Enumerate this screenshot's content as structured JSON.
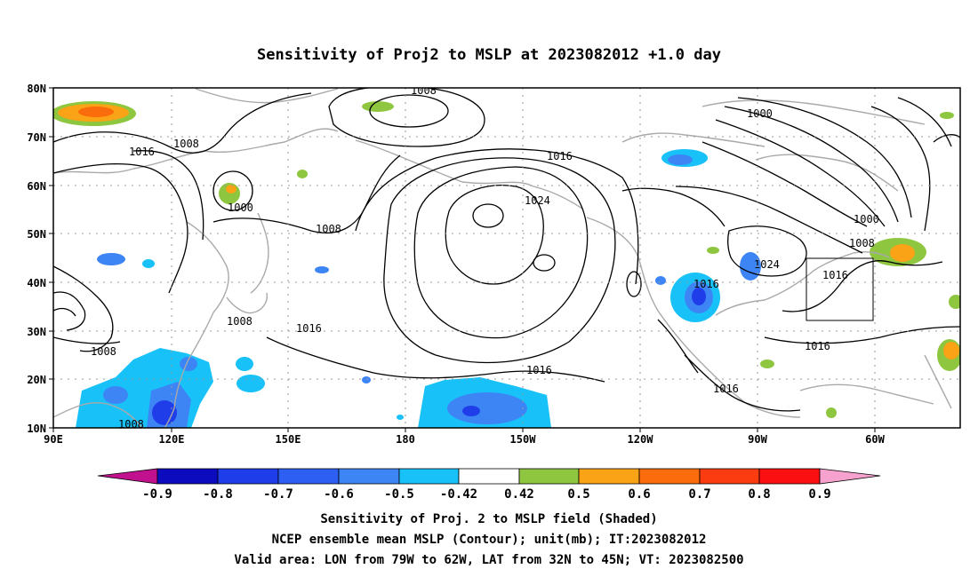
{
  "title": "Sensitivity of Proj2 to MSLP at 2023082012 +1.0 day",
  "axes": {
    "x_ticks": [
      "90E",
      "120E",
      "150E",
      "180",
      "150W",
      "120W",
      "90W",
      "60W"
    ],
    "y_ticks": [
      "80N",
      "70N",
      "60N",
      "50N",
      "40N",
      "30N",
      "20N",
      "10N"
    ]
  },
  "contour_labels": [
    "1008",
    "1000",
    "1016",
    "1008",
    "1000",
    "1008",
    "1016",
    "1024",
    "1016",
    "1008",
    "1016",
    "1008",
    "1024",
    "1016",
    "1000",
    "1008",
    "1016",
    "1016",
    "1016",
    "1008"
  ],
  "colorbar": {
    "labels": [
      "-0.9",
      "-0.8",
      "-0.7",
      "-0.6",
      "-0.5",
      "-0.42",
      "0.42",
      "0.5",
      "0.6",
      "0.7",
      "0.8",
      "0.9"
    ],
    "colors": [
      "#c2118f",
      "#0c0bbd",
      "#1f3de9",
      "#2d5ff2",
      "#3d85f5",
      "#18c1f8",
      "#ffffff",
      "#8ec63f",
      "#fba316",
      "#fb6c0c",
      "#fb3c10",
      "#fb0f10",
      "#f7a1cf"
    ]
  },
  "caption": {
    "line1": "Sensitivity of Proj. 2 to MSLP field (Shaded)",
    "line2": "NCEP ensemble mean MSLP (Contour); unit(mb); IT:2023082012",
    "line3": "Valid area: LON from 79W to 62W, LAT from 32N to 45N; VT: 2023082500"
  },
  "valid_box": {
    "lon_range": [
      "79W",
      "62W"
    ],
    "lat_range": [
      "32N",
      "45N"
    ]
  }
}
